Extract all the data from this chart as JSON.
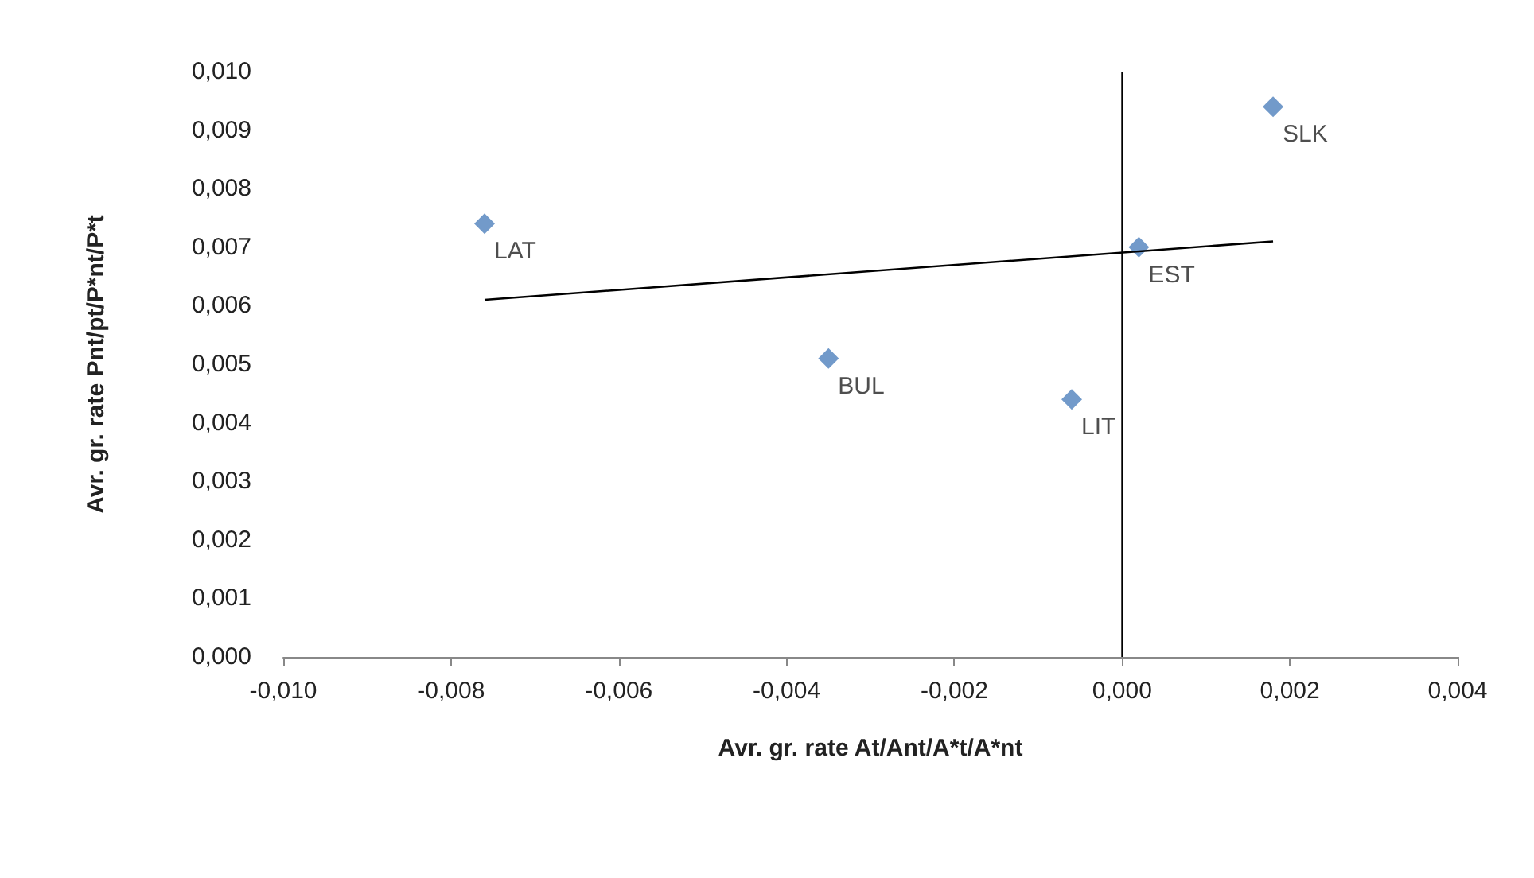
{
  "chart_data": {
    "type": "scatter",
    "xlabel": "Avr. gr. rate At/Ant/A*t/A*nt",
    "ylabel": "Avr. gr. rate Pnt/pt/P*nt/P*t",
    "x": [
      -0.0076,
      -0.0035,
      -0.0006,
      0.0002,
      0.0018
    ],
    "series": [
      {
        "color": "#4f81bd",
        "values": [
          0.0074,
          0.0051,
          0.0044,
          0.007,
          0.0094
        ],
        "marker": "diamond"
      },
      {
        "type": "line",
        "color": "#000000",
        "x": [
          -0.0076,
          0.0018
        ],
        "values": [
          0.0061,
          0.0071
        ],
        "marker": "none",
        "line_style": "solid"
      }
    ],
    "annotations": [
      {
        "text": "LAT",
        "x": -0.0076,
        "y": 0.0074
      },
      {
        "text": "BUL",
        "x": -0.0035,
        "y": 0.0051
      },
      {
        "text": "LIT",
        "x": -0.0006,
        "y": 0.0044
      },
      {
        "text": "EST",
        "x": 0.0002,
        "y": 0.007
      },
      {
        "text": "SLK",
        "x": 0.0018,
        "y": 0.0094
      }
    ],
    "ref_lines": [
      {
        "axis": "x",
        "value": 0,
        "color": "#000000"
      }
    ],
    "xlim": [
      -0.01,
      0.004
    ],
    "xticks": [
      {
        "value": -0.01,
        "label": "-0,010"
      },
      {
        "value": -0.008,
        "label": "-0,008"
      },
      {
        "value": -0.006,
        "label": "-0,006"
      },
      {
        "value": -0.004,
        "label": "-0,004"
      },
      {
        "value": -0.002,
        "label": "-0,002"
      },
      {
        "value": 0,
        "label": "0,000"
      },
      {
        "value": 0.002,
        "label": "0,002"
      },
      {
        "value": 0.004,
        "label": "0,004"
      }
    ],
    "ylim": [
      0,
      0.01
    ],
    "yticks": [
      {
        "value": 0,
        "label": "0,000"
      },
      {
        "value": 0.001,
        "label": "0,001"
      },
      {
        "value": 0.002,
        "label": "0,002"
      },
      {
        "value": 0.003,
        "label": "0,003"
      },
      {
        "value": 0.004,
        "label": "0,004"
      },
      {
        "value": 0.005,
        "label": "0,005"
      },
      {
        "value": 0.006,
        "label": "0,006"
      },
      {
        "value": 0.007,
        "label": "0,007"
      },
      {
        "value": 0.008,
        "label": "0,008"
      },
      {
        "value": 0.009,
        "label": "0,009"
      },
      {
        "value": 0.01,
        "label": "0,010"
      }
    ],
    "grid": false
  }
}
